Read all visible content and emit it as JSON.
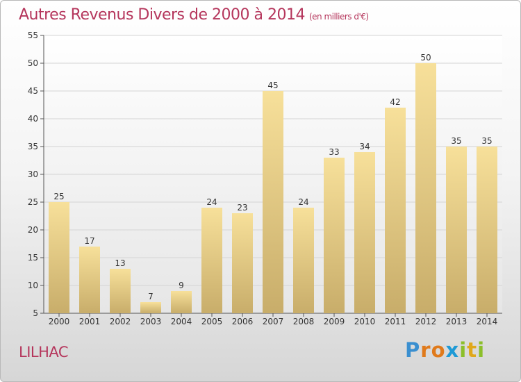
{
  "header": {
    "title": "Autres Revenus Divers de 2000 à 2014",
    "unit": "(en milliers d'€)"
  },
  "footer": {
    "commune": "LILHAC",
    "brand_letters": [
      "P",
      "r",
      "o",
      "x",
      "i",
      "t",
      "i"
    ]
  },
  "colors": {
    "title": "#b5365c",
    "bar_light": "#f7e09a",
    "bar_dark": "#c8ad6a"
  },
  "chart_data": {
    "type": "bar",
    "categories": [
      "2000",
      "2001",
      "2002",
      "2003",
      "2004",
      "2005",
      "2006",
      "2007",
      "2008",
      "2009",
      "2010",
      "2011",
      "2012",
      "2013",
      "2014"
    ],
    "values": [
      25,
      17,
      13,
      7,
      9,
      24,
      23,
      45,
      24,
      33,
      34,
      42,
      50,
      35,
      35
    ],
    "title": "Autres Revenus Divers de 2000 à 2014",
    "subtitle": "(en milliers d'€)",
    "ylim": [
      5,
      55
    ],
    "yticks": [
      5,
      10,
      15,
      20,
      25,
      30,
      35,
      40,
      45,
      50,
      55
    ],
    "grid": true
  }
}
